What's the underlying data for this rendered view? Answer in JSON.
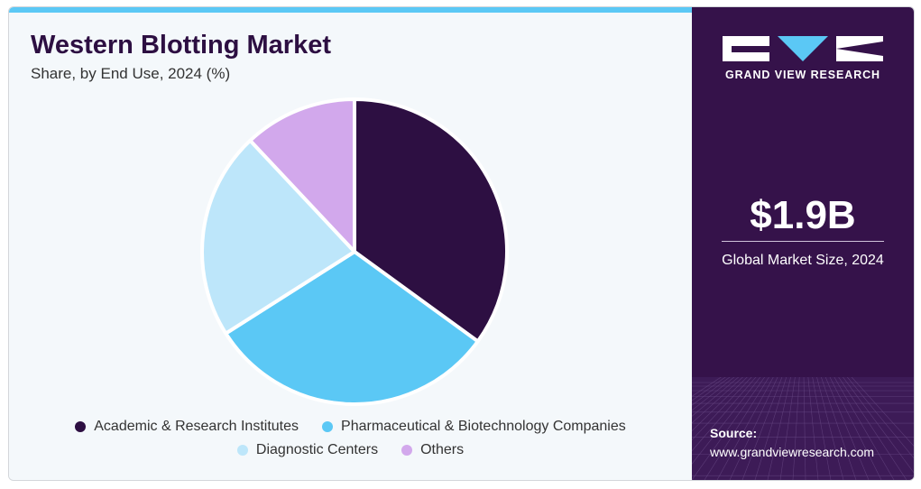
{
  "title": "Western Blotting Market",
  "subtitle": "Share, by End Use, 2024 (%)",
  "chart_data": {
    "type": "pie",
    "title": "Western Blotting Market",
    "subtitle": "Share, by End Use, 2024 (%)",
    "categories": [
      "Academic & Research Institutes",
      "Pharmaceutical & Biotechnology Companies",
      "Diagnostic Centers",
      "Others"
    ],
    "values": [
      35,
      31,
      22,
      12
    ],
    "colors": [
      "#2d0f42",
      "#5bc8f5",
      "#bde6fa",
      "#d2a8ec"
    ],
    "legend_position": "bottom"
  },
  "legend": [
    {
      "label": "Academic & Research Institutes",
      "color": "#2d0f42"
    },
    {
      "label": "Pharmaceutical & Biotechnology Companies",
      "color": "#5bc8f5"
    },
    {
      "label": "Diagnostic Centers",
      "color": "#bde6fa"
    },
    {
      "label": "Others",
      "color": "#d2a8ec"
    }
  ],
  "sidebar": {
    "brand": "GRAND VIEW RESEARCH",
    "market_value": "$1.9B",
    "market_label": "Global Market Size, 2024",
    "source_label": "Source:",
    "source_url": "www.grandviewresearch.com"
  },
  "colors": {
    "accent": "#5bc8f5",
    "sidebar_bg": "#35124a",
    "title": "#2d0f42"
  }
}
